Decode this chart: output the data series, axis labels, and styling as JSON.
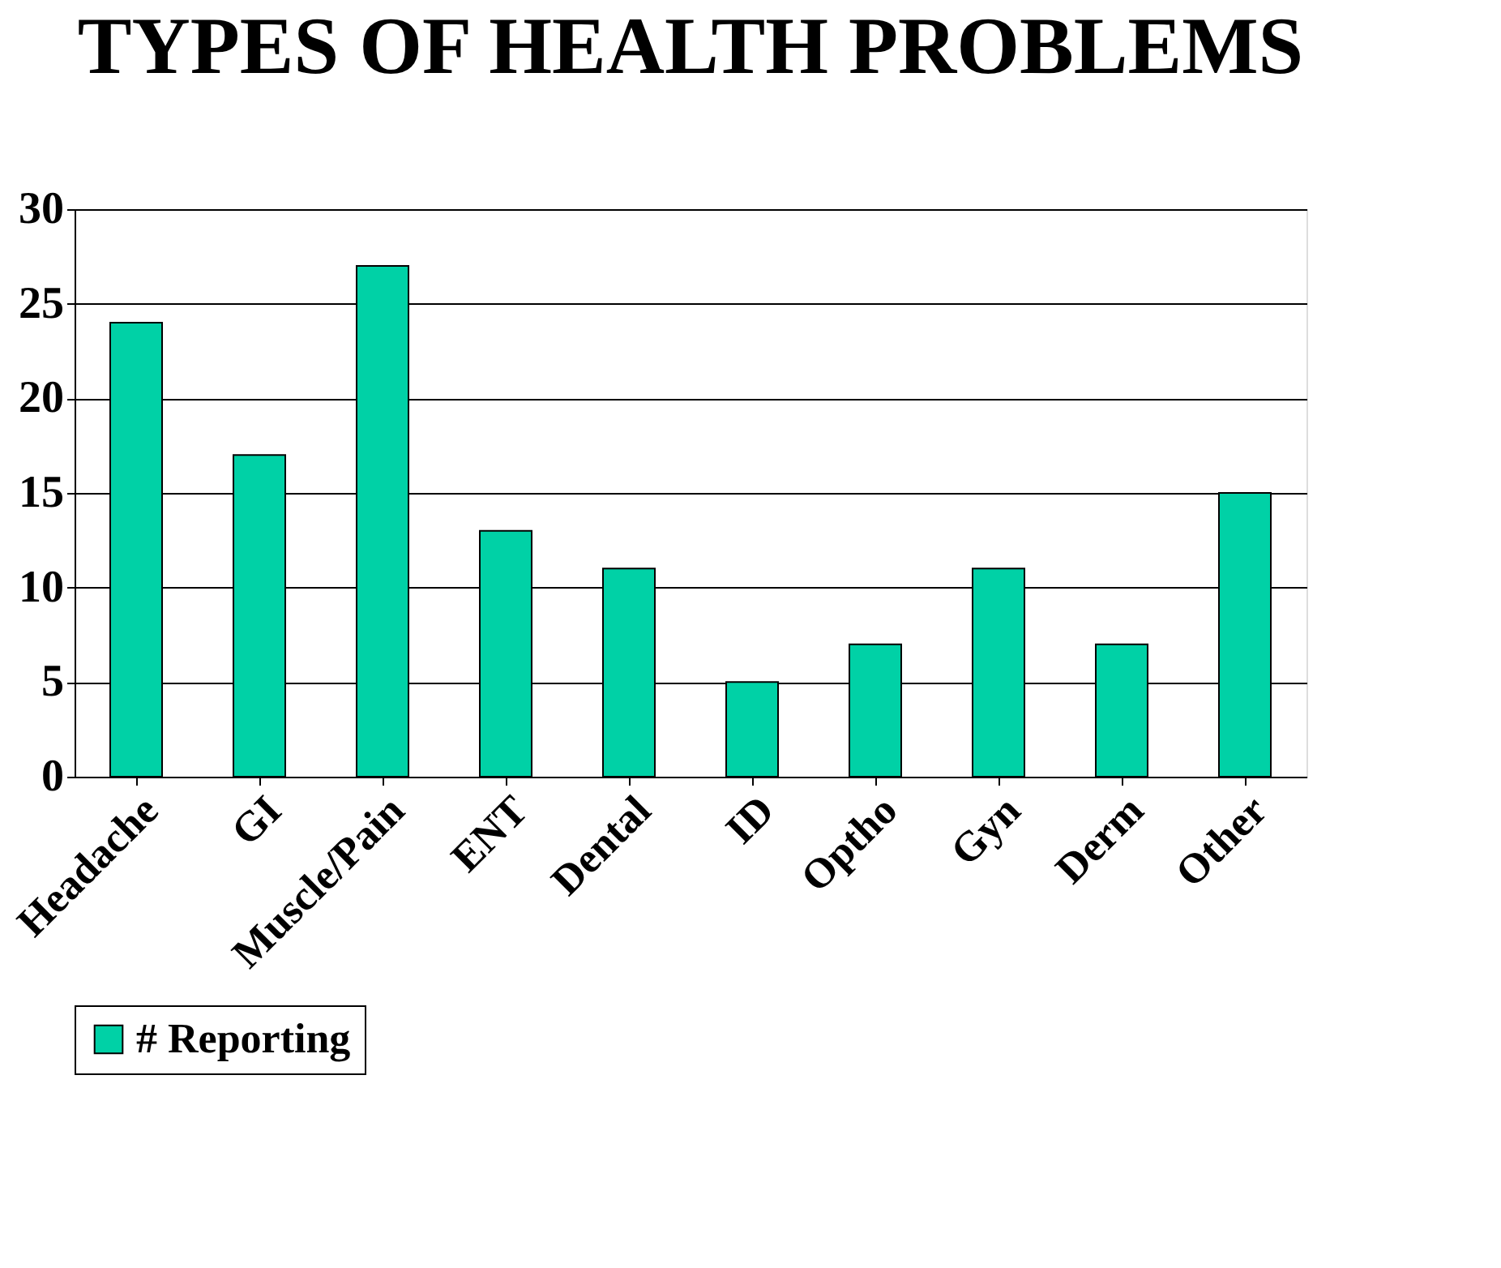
{
  "chart_data": {
    "type": "bar",
    "title": "TYPES OF HEALTH PROBLEMS",
    "categories": [
      "Headache",
      "GI",
      "Muscle/Pain",
      "ENT",
      "Dental",
      "ID",
      "Optho",
      "Gyn",
      "Derm",
      "Other"
    ],
    "series": [
      {
        "name": "# Reporting",
        "color": "#00d1a6",
        "values": [
          24,
          17,
          27,
          13,
          11,
          5,
          7,
          11,
          7,
          15
        ]
      }
    ],
    "ylim": [
      0,
      30
    ],
    "yticks": [
      0,
      5,
      10,
      15,
      20,
      25,
      30
    ],
    "grid": "y",
    "legend": "bottom"
  }
}
